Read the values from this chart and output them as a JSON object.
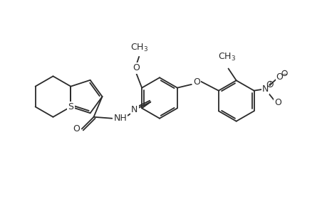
{
  "bg": "#ffffff",
  "lc": "#2a2a2a",
  "lw": 1.3,
  "fs": 9.0,
  "dpi": 100,
  "fw": 4.6,
  "fh": 3.0,
  "xlim": [
    0,
    11.5
  ],
  "ylim": [
    0,
    7.0
  ]
}
